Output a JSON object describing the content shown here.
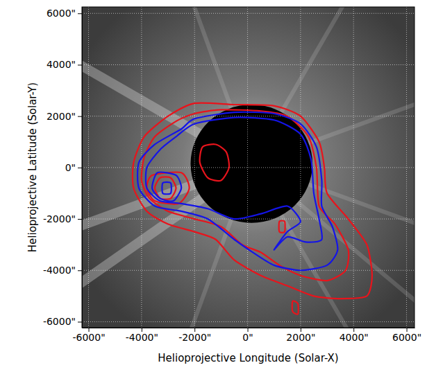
{
  "chart_data": {
    "type": "contour",
    "x_label": "Helioprojective Longitude (Solar-X)",
    "y_label": "Helioprojective Latitude (Solar-Y)",
    "xlim": [
      -6250,
      6300
    ],
    "ylim": [
      -6230,
      6250
    ],
    "xticks": [
      {
        "value": -6000,
        "label": "-6000\""
      },
      {
        "value": -4000,
        "label": "-4000\""
      },
      {
        "value": -2000,
        "label": "-2000\""
      },
      {
        "value": 0,
        "label": "0\""
      },
      {
        "value": 2000,
        "label": "2000\""
      },
      {
        "value": 4000,
        "label": "4000\""
      },
      {
        "value": 6000,
        "label": "6000\""
      }
    ],
    "yticks": [
      {
        "value": -6000,
        "label": "-6000\""
      },
      {
        "value": -4000,
        "label": "-4000\""
      },
      {
        "value": -2000,
        "label": "-2000\""
      },
      {
        "value": 0,
        "label": "0\""
      },
      {
        "value": 2000,
        "label": "2000\""
      },
      {
        "value": 4000,
        "label": "4000\""
      },
      {
        "value": 6000,
        "label": "6000\""
      }
    ],
    "grid": true,
    "occulter": {
      "x": 150,
      "y": 150,
      "r": 2300
    },
    "series": [
      {
        "color": "#e8141c",
        "x": [
          -2000,
          -500,
          1000,
          2000,
          2700,
          2900,
          3000,
          3800,
          4500,
          4700,
          4500,
          3500,
          2500,
          1500,
          500,
          -500,
          -1200,
          -2000,
          -3000,
          -3800,
          -4300,
          -4300,
          -3900,
          -3000
        ],
        "y": [
          2500,
          2450,
          2400,
          2000,
          1000,
          0,
          -1000,
          -2000,
          -3000,
          -4200,
          -5000,
          -5100,
          -5000,
          -4600,
          -4200,
          -3600,
          -2800,
          -2500,
          -2200,
          -1700,
          -800,
          200,
          1200,
          2000
        ]
      },
      {
        "color": "#e8141c",
        "x": [
          -2000,
          -1000,
          500,
          1500,
          2300,
          2600,
          2700,
          3300,
          3800,
          3700,
          3000,
          2000,
          1200,
          500,
          -200,
          -1000,
          -2000,
          -3000,
          -3700,
          -4000,
          -3900,
          -3500,
          -2700
        ],
        "y": [
          2100,
          2250,
          2200,
          2000,
          1200,
          0,
          -1500,
          -2200,
          -3200,
          -4000,
          -4400,
          -4200,
          -3800,
          -3300,
          -3000,
          -2300,
          -2000,
          -1700,
          -1200,
          -500,
          400,
          1200,
          1800
        ]
      },
      {
        "color": "#e8141c",
        "x": [
          -3600,
          -2500,
          -2200,
          -2600,
          -3500,
          -3800
        ],
        "y": [
          -300,
          -200,
          -800,
          -1400,
          -1300,
          -800
        ]
      },
      {
        "color": "#e8141c",
        "x": [
          -3300,
          -2900,
          -2700,
          -2900,
          -3300,
          -3500
        ],
        "y": [
          -400,
          -400,
          -800,
          -1200,
          -1200,
          -800
        ]
      },
      {
        "color": "#e8141c",
        "x": [
          -1700,
          -1200,
          -800,
          -700,
          -1000,
          -1500,
          -1800
        ],
        "y": [
          800,
          900,
          600,
          0,
          -500,
          -400,
          200
        ]
      },
      {
        "color": "#e8141c",
        "x": [
          1200,
          1400,
          1400,
          1200
        ],
        "y": [
          -2100,
          -2100,
          -2500,
          -2500
        ]
      },
      {
        "color": "#e8141c",
        "x": [
          1700,
          1900,
          1900,
          1700
        ],
        "y": [
          -5200,
          -5300,
          -5700,
          -5600
        ]
      },
      {
        "color": "#1414e8",
        "x": [
          -2000,
          -500,
          1000,
          2000,
          2600,
          2800,
          2800,
          3200,
          3400,
          3000,
          2000,
          1000,
          200,
          -500,
          -1500,
          -2500,
          -3500,
          -4100,
          -4100,
          -3500,
          -2500
        ],
        "y": [
          1900,
          2150,
          2100,
          1700,
          800,
          -500,
          -1500,
          -2300,
          -3200,
          -3800,
          -4000,
          -3800,
          -3300,
          -2800,
          -2000,
          -1700,
          -1500,
          -800,
          200,
          900,
          1500
        ]
      },
      {
        "color": "#1414e8",
        "x": [
          -2000,
          -500,
          1000,
          2000,
          2400,
          2500,
          2700,
          2800,
          2200,
          1500,
          1000,
          1500,
          2000,
          1500,
          500,
          -500,
          -1500,
          -2500,
          -3300,
          -3800,
          -3800,
          -3300,
          -2700
        ],
        "y": [
          1700,
          1950,
          1850,
          1300,
          300,
          -1000,
          -2000,
          -2800,
          -2900,
          -2700,
          -3200,
          -2500,
          -2100,
          -1500,
          -1800,
          -2000,
          -1600,
          -1400,
          -1300,
          -800,
          0,
          700,
          1200
        ]
      },
      {
        "color": "#1414e8",
        "x": [
          -3400,
          -2700,
          -2500,
          -2800,
          -3300,
          -3600
        ],
        "y": [
          -200,
          -300,
          -800,
          -1300,
          -1200,
          -800
        ]
      },
      {
        "color": "#1414e8",
        "x": [
          -3200,
          -2900,
          -2900,
          -3200
        ],
        "y": [
          -600,
          -600,
          -1000,
          -1000
        ]
      }
    ]
  }
}
